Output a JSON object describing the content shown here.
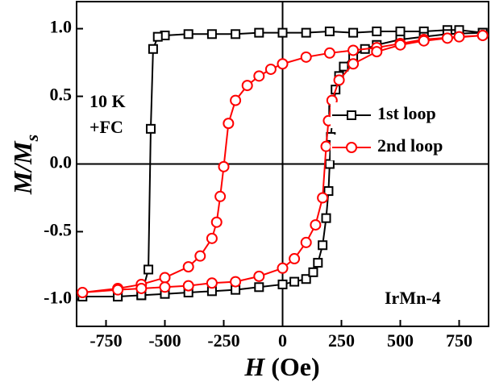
{
  "chart_data": {
    "type": "line",
    "x_label": [
      "H",
      "(Oe)"
    ],
    "y_label": [
      "M/M",
      "s"
    ],
    "xlim": [
      -875,
      875
    ],
    "ylim": [
      -1.2,
      1.2
    ],
    "xticks": [
      -750,
      -500,
      -250,
      0,
      250,
      500,
      750
    ],
    "yticks": [
      {
        "value": -1,
        "label": "-1.0"
      },
      -0.5,
      {
        "value": 0,
        "label": "0.0"
      },
      0.5,
      {
        "value": 1,
        "label": "1.0"
      }
    ],
    "zero_lines": true,
    "legend": "right",
    "annotations": [
      "10 K",
      "+FC",
      "IrMn-4"
    ],
    "series": [
      {
        "name": "1st loop",
        "color": "#000000",
        "marker": "square",
        "x": [
          850,
          750,
          700,
          600,
          500,
          400,
          300,
          200,
          100,
          0,
          -100,
          -200,
          -300,
          -400,
          -500,
          -530,
          -550,
          -560,
          -570,
          -600,
          -700,
          -850,
          -700,
          -600,
          -500,
          -400,
          -300,
          -200,
          -100,
          0,
          50,
          100,
          130,
          150,
          170,
          185,
          195,
          200,
          205,
          215,
          225,
          240,
          260,
          300,
          350,
          400,
          500,
          600,
          700,
          850
        ],
        "values": [
          0.97,
          0.99,
          0.99,
          0.98,
          0.98,
          0.98,
          0.97,
          0.98,
          0.97,
          0.97,
          0.97,
          0.96,
          0.96,
          0.96,
          0.95,
          0.94,
          0.85,
          0.26,
          -0.78,
          -0.97,
          -0.98,
          -0.98,
          -0.98,
          -0.97,
          -0.96,
          -0.95,
          -0.94,
          -0.93,
          -0.91,
          -0.89,
          -0.87,
          -0.85,
          -0.8,
          -0.73,
          -0.6,
          -0.4,
          -0.2,
          0.0,
          0.2,
          0.4,
          0.55,
          0.65,
          0.72,
          0.8,
          0.85,
          0.88,
          0.92,
          0.94,
          0.96,
          0.97
        ]
      },
      {
        "name": "2nd loop",
        "color": "#ff0000",
        "marker": "circle",
        "x": [
          850,
          750,
          600,
          500,
          400,
          300,
          200,
          100,
          0,
          -50,
          -100,
          -150,
          -200,
          -230,
          -250,
          -265,
          -280,
          -300,
          -350,
          -400,
          -500,
          -600,
          -700,
          -850,
          -700,
          -600,
          -500,
          -400,
          -300,
          -200,
          -100,
          0,
          50,
          100,
          140,
          170,
          185,
          195,
          210,
          240,
          300,
          400,
          500,
          600,
          700,
          850
        ],
        "values": [
          0.95,
          0.94,
          0.92,
          0.89,
          0.86,
          0.84,
          0.82,
          0.79,
          0.74,
          0.7,
          0.65,
          0.58,
          0.47,
          0.3,
          -0.02,
          -0.24,
          -0.43,
          -0.55,
          -0.68,
          -0.76,
          -0.84,
          -0.89,
          -0.92,
          -0.95,
          -0.93,
          -0.92,
          -0.91,
          -0.9,
          -0.88,
          -0.87,
          -0.83,
          -0.77,
          -0.7,
          -0.58,
          -0.45,
          -0.25,
          0.13,
          0.32,
          0.47,
          0.62,
          0.74,
          0.83,
          0.88,
          0.91,
          0.93,
          0.95
        ]
      }
    ]
  }
}
